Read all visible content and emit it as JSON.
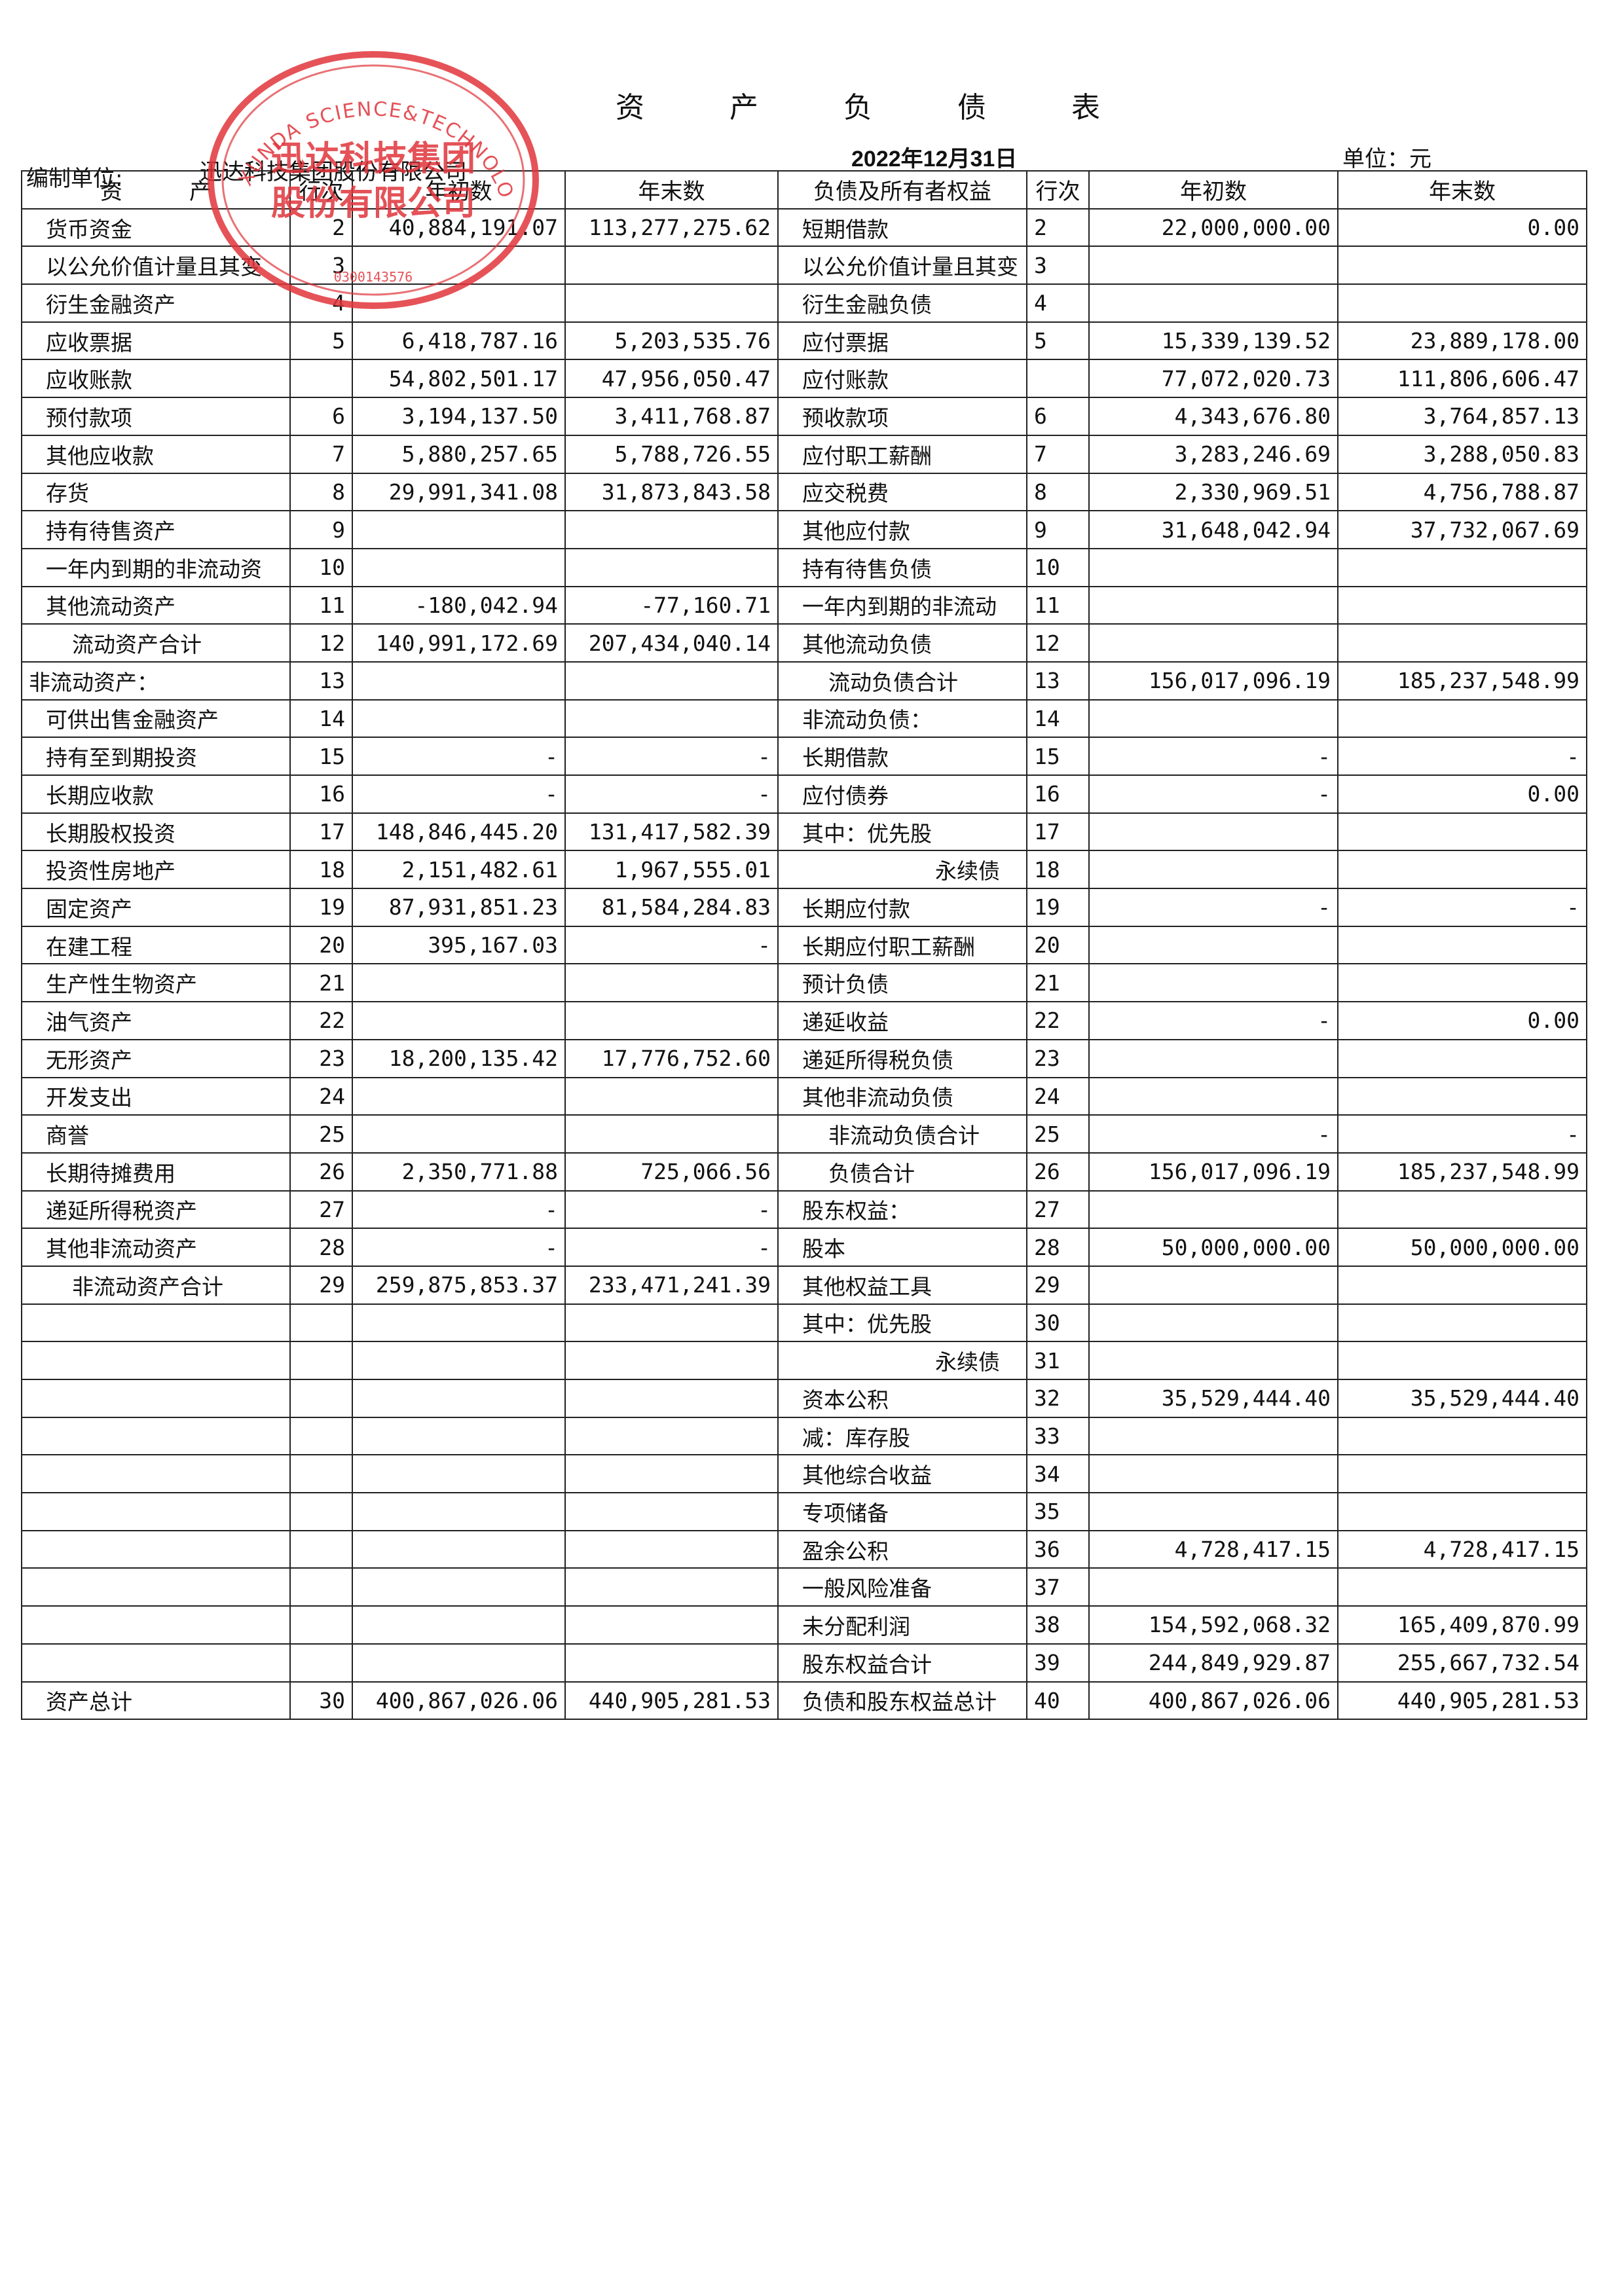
{
  "document": {
    "title": "资 产 负 债 表",
    "unit_label": "编制单位:",
    "unit_name": "迅达科技集团股份有限公司",
    "date": "2022年12月31日",
    "currency": "单位：元"
  },
  "columns": {
    "assets": "资　　　产",
    "row_no": "行次",
    "begin": "年初数",
    "end": "年末数",
    "liabilities": "负债及所有者权益",
    "row_no2": "行次",
    "begin2": "年初数",
    "end2": "年末数"
  },
  "rows": [
    {
      "a": "货币资金",
      "ai": "2",
      "ab": "40,884,191.07",
      "ae": "113,277,275.62",
      "l": "短期借款",
      "li": "2",
      "lb": "22,000,000.00",
      "le": "0.00"
    },
    {
      "a": "以公允价值计量且其变",
      "ai": "3",
      "ab": "",
      "ae": "",
      "l": "以公允价值计量且其变",
      "li": "3",
      "lb": "",
      "le": ""
    },
    {
      "a": "衍生金融资产",
      "ai": "4",
      "ab": "",
      "ae": "",
      "l": "衍生金融负债",
      "li": "4",
      "lb": "",
      "le": ""
    },
    {
      "a": "应收票据",
      "ai": "5",
      "ab": "6,418,787.16",
      "ae": "5,203,535.76",
      "l": "应付票据",
      "li": "5",
      "lb": "15,339,139.52",
      "le": "23,889,178.00"
    },
    {
      "a": "应收账款",
      "ai": "",
      "ab": "54,802,501.17",
      "ae": "47,956,050.47",
      "l": "应付账款",
      "li": "",
      "lb": "77,072,020.73",
      "le": "111,806,606.47"
    },
    {
      "a": "预付款项",
      "ai": "6",
      "ab": "3,194,137.50",
      "ae": "3,411,768.87",
      "l": "预收款项",
      "li": "6",
      "lb": "4,343,676.80",
      "le": "3,764,857.13"
    },
    {
      "a": "其他应收款",
      "ai": "7",
      "ab": "5,880,257.65",
      "ae": "5,788,726.55",
      "l": "应付职工薪酬",
      "li": "7",
      "lb": "3,283,246.69",
      "le": "3,288,050.83"
    },
    {
      "a": "存货",
      "ai": "8",
      "ab": "29,991,341.08",
      "ae": "31,873,843.58",
      "l": "应交税费",
      "li": "8",
      "lb": "2,330,969.51",
      "le": "4,756,788.87"
    },
    {
      "a": "持有待售资产",
      "ai": "9",
      "ab": "",
      "ae": "",
      "l": "其他应付款",
      "li": "9",
      "lb": "31,648,042.94",
      "le": "37,732,067.69"
    },
    {
      "a": "一年内到期的非流动资",
      "ai": "10",
      "ab": "",
      "ae": "",
      "l": "持有待售负债",
      "li": "10",
      "lb": "",
      "le": ""
    },
    {
      "a": "其他流动资产",
      "ai": "11",
      "ab": "-180,042.94",
      "ae": "-77,160.71",
      "l": "一年内到期的非流动",
      "li": "11",
      "lb": "",
      "le": ""
    },
    {
      "a": "流动资产合计",
      "ai": "12",
      "ab": "140,991,172.69",
      "ae": "207,434,040.14",
      "l": "其他流动负债",
      "li": "12",
      "lb": "",
      "le": ""
    },
    {
      "a": "非流动资产：",
      "ai": "13",
      "ab": "",
      "ae": "",
      "l": "流动负债合计",
      "li": "13",
      "lb": "156,017,096.19",
      "le": "185,237,548.99"
    },
    {
      "a": "可供出售金融资产",
      "ai": "14",
      "ab": "",
      "ae": "",
      "l": "非流动负债：",
      "li": "14",
      "lb": "",
      "le": ""
    },
    {
      "a": "持有至到期投资",
      "ai": "15",
      "ab": "-",
      "ae": "-",
      "l": "长期借款",
      "li": "15",
      "lb": "-",
      "le": "-"
    },
    {
      "a": "长期应收款",
      "ai": "16",
      "ab": "-",
      "ae": "-",
      "l": "应付债券",
      "li": "16",
      "lb": "-",
      "le": "0.00"
    },
    {
      "a": "长期股权投资",
      "ai": "17",
      "ab": "148,846,445.20",
      "ae": "131,417,582.39",
      "l": "其中：优先股",
      "li": "17",
      "lb": "",
      "le": ""
    },
    {
      "a": "投资性房地产",
      "ai": "18",
      "ab": "2,151,482.61",
      "ae": "1,967,555.01",
      "l": "永续债",
      "li": "18",
      "lb": "",
      "le": ""
    },
    {
      "a": "固定资产",
      "ai": "19",
      "ab": "87,931,851.23",
      "ae": "81,584,284.83",
      "l": "长期应付款",
      "li": "19",
      "lb": "-",
      "le": "-"
    },
    {
      "a": "在建工程",
      "ai": "20",
      "ab": "395,167.03",
      "ae": "-",
      "l": "长期应付职工薪酬",
      "li": "20",
      "lb": "",
      "le": ""
    },
    {
      "a": "生产性生物资产",
      "ai": "21",
      "ab": "",
      "ae": "",
      "l": "预计负债",
      "li": "21",
      "lb": "",
      "le": ""
    },
    {
      "a": "油气资产",
      "ai": "22",
      "ab": "",
      "ae": "",
      "l": "递延收益",
      "li": "22",
      "lb": "-",
      "le": "0.00"
    },
    {
      "a": "无形资产",
      "ai": "23",
      "ab": "18,200,135.42",
      "ae": "17,776,752.60",
      "l": "递延所得税负债",
      "li": "23",
      "lb": "",
      "le": ""
    },
    {
      "a": "开发支出",
      "ai": "24",
      "ab": "",
      "ae": "",
      "l": "其他非流动负债",
      "li": "24",
      "lb": "",
      "le": ""
    },
    {
      "a": "商誉",
      "ai": "25",
      "ab": "",
      "ae": "",
      "l": "非流动负债合计",
      "li": "25",
      "lb": "-",
      "le": "-"
    },
    {
      "a": "长期待摊费用",
      "ai": "26",
      "ab": "2,350,771.88",
      "ae": "725,066.56",
      "l": "负债合计",
      "li": "26",
      "lb": "156,017,096.19",
      "le": "185,237,548.99"
    },
    {
      "a": "递延所得税资产",
      "ai": "27",
      "ab": "-",
      "ae": "-",
      "l": "股东权益：",
      "li": "27",
      "lb": "",
      "le": ""
    },
    {
      "a": "其他非流动资产",
      "ai": "28",
      "ab": "-",
      "ae": "-",
      "l": "股本",
      "li": "28",
      "lb": "50,000,000.00",
      "le": "50,000,000.00"
    },
    {
      "a": "非流动资产合计",
      "ai": "29",
      "ab": "259,875,853.37",
      "ae": "233,471,241.39",
      "l": "其他权益工具",
      "li": "29",
      "lb": "",
      "le": ""
    },
    {
      "a": "",
      "ai": "",
      "ab": "",
      "ae": "",
      "l": "其中：优先股",
      "li": "30",
      "lb": "",
      "le": ""
    },
    {
      "a": "",
      "ai": "",
      "ab": "",
      "ae": "",
      "l": "永续债",
      "li": "31",
      "lb": "",
      "le": ""
    },
    {
      "a": "",
      "ai": "",
      "ab": "",
      "ae": "",
      "l": "资本公积",
      "li": "32",
      "lb": "35,529,444.40",
      "le": "35,529,444.40"
    },
    {
      "a": "",
      "ai": "",
      "ab": "",
      "ae": "",
      "l": "减：库存股",
      "li": "33",
      "lb": "",
      "le": ""
    },
    {
      "a": "",
      "ai": "",
      "ab": "",
      "ae": "",
      "l": "其他综合收益",
      "li": "34",
      "lb": "",
      "le": ""
    },
    {
      "a": "",
      "ai": "",
      "ab": "",
      "ae": "",
      "l": "专项储备",
      "li": "35",
      "lb": "",
      "le": ""
    },
    {
      "a": "",
      "ai": "",
      "ab": "",
      "ae": "",
      "l": "盈余公积",
      "li": "36",
      "lb": "4,728,417.15",
      "le": "4,728,417.15"
    },
    {
      "a": "",
      "ai": "",
      "ab": "",
      "ae": "",
      "l": "一般风险准备",
      "li": "37",
      "lb": "",
      "le": ""
    },
    {
      "a": "",
      "ai": "",
      "ab": "",
      "ae": "",
      "l": "未分配利润",
      "li": "38",
      "lb": "154,592,068.32",
      "le": "165,409,870.99"
    },
    {
      "a": "",
      "ai": "",
      "ab": "",
      "ae": "",
      "l": "股东权益合计",
      "li": "39",
      "lb": "244,849,929.87",
      "le": "255,667,732.54"
    },
    {
      "a": "资产总计",
      "ai": "30",
      "ab": "400,867,026.06",
      "ae": "440,905,281.53",
      "l": "负债和股东权益总计",
      "li": "40",
      "lb": "400,867,026.06",
      "le": "440,905,281.53"
    }
  ],
  "seal": {
    "color": "#e0353b",
    "top_text": "XUNDA SCIENCE&TECHNOLOGY GROUP CO.",
    "center_text_1": "迅达科技集团",
    "center_text_2": "股份有限公司",
    "number": "0300143576"
  }
}
